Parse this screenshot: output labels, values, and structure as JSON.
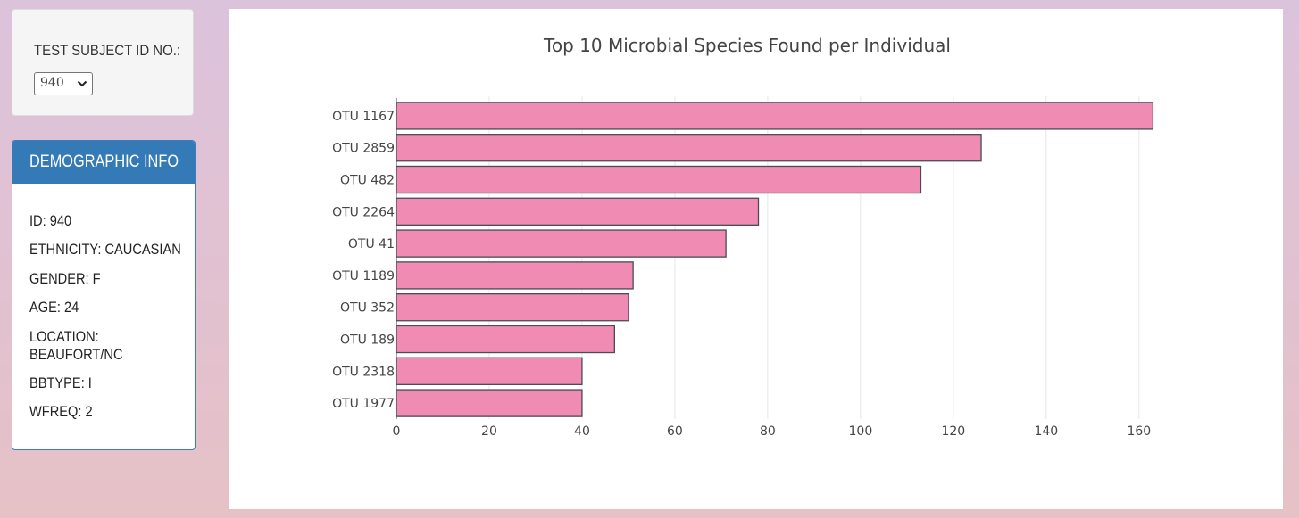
{
  "selector": {
    "label": "TEST SUBJECT ID NO.:",
    "selected": "940"
  },
  "demographic": {
    "title": "DEMOGRAPHIC INFO",
    "rows": [
      "ID: 940",
      "ETHNICITY: CAUCASIAN",
      "GENDER: F",
      "AGE: 24",
      "LOCATION: BEAUFORT/NC",
      "BBTYPE: I",
      "WFREQ: 2"
    ]
  },
  "chart_data": {
    "type": "bar",
    "orientation": "horizontal",
    "title": "Top 10 Microbial Species Found per Individual",
    "xlabel": "",
    "ylabel": "",
    "categories": [
      "OTU 1167",
      "OTU 2859",
      "OTU 482",
      "OTU 2264",
      "OTU 41",
      "OTU 1189",
      "OTU 352",
      "OTU 189",
      "OTU 2318",
      "OTU 1977"
    ],
    "values": [
      163,
      126,
      113,
      78,
      71,
      51,
      50,
      47,
      40,
      40
    ],
    "xlim": [
      0,
      166
    ],
    "xticks": [
      0,
      20,
      40,
      60,
      80,
      100,
      120,
      140,
      160
    ],
    "grid": true,
    "bar_color": "#f08cb3",
    "bar_edge_color": "#4a4a58"
  }
}
